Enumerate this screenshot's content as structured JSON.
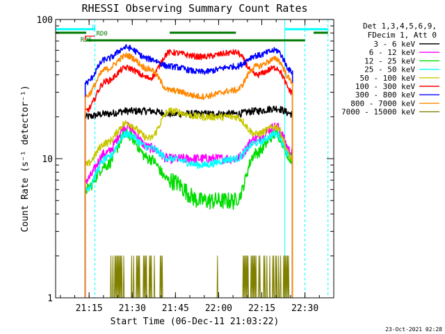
{
  "chart_data": {
    "type": "line",
    "title": "RHESSI Observing Summary Count Rates",
    "xlabel": "Start Time (06-Dec-11 21:03:22)",
    "ylabel": "Count Rate (s⁻¹ detector⁻¹)",
    "y_scale": "log",
    "ylim": [
      1,
      100
    ],
    "xlim": [
      "21:03:22",
      "22:40:00"
    ],
    "x_ticks": [
      "21:15",
      "21:30",
      "21:45",
      "22:00",
      "22:15",
      "22:30"
    ],
    "y_ticks": [
      "1",
      "10",
      "100"
    ],
    "footer": "23-Oct-2021 02:28",
    "legend": {
      "placement": "right",
      "header": [
        "Det 1,3,4,5,6,9,",
        "FDecim 1, Att 0"
      ]
    },
    "flags": [
      {
        "label": "N",
        "color": "#00ffff",
        "segments": [
          [
            "21:03:22",
            "21:17:00"
          ],
          [
            "22:23:00",
            "22:38:00"
          ]
        ]
      },
      {
        "label": "RD0",
        "color": "#007700",
        "segments": [
          [
            "21:03:22",
            "21:14:00"
          ],
          [
            "21:43:00",
            "22:06:00"
          ],
          [
            "22:33:00",
            "22:38:00"
          ]
        ]
      },
      {
        "label": "RD6",
        "color": "#007700",
        "segments": [
          [
            "21:14:00",
            "22:30:00"
          ]
        ]
      }
    ],
    "vertical_lines": [
      {
        "time": "21:17:00",
        "color": "#00ffff",
        "style": "dashed"
      },
      {
        "time": "22:30:00",
        "color": "#00ffff",
        "style": "dashed"
      },
      {
        "time": "22:38:00",
        "color": "#00ffff",
        "style": "dashed"
      },
      {
        "time": "21:03:22",
        "color": "#00ffff",
        "style": "solid"
      },
      {
        "time": "22:23:00",
        "color": "#00ffff",
        "style": "solid"
      }
    ],
    "data_window": [
      "21:13:40",
      "22:25:40"
    ],
    "attenuator_interval": [
      "21:43:00",
      "22:06:00"
    ],
    "key_times": [
      "21:13:40",
      "21:21:00",
      "21:28:00",
      "21:36:00",
      "21:43:00",
      "21:54:00",
      "22:06:00",
      "22:13:00",
      "22:20:00",
      "22:25:40"
    ],
    "series": [
      {
        "name": "3 - 6 keV",
        "color": "#000000",
        "values": [
          20,
          21,
          22,
          22,
          21,
          21,
          21,
          22,
          23,
          21
        ]
      },
      {
        "name": "6 - 12 keV",
        "color": "#ff00ff",
        "values": [
          7,
          11,
          17,
          12,
          10,
          10,
          10,
          14,
          17,
          11
        ]
      },
      {
        "name": "12 - 25 keV",
        "color": "#00dd00",
        "values": [
          6,
          9,
          15,
          10,
          7,
          5,
          5,
          11,
          15,
          10
        ]
      },
      {
        "name": "25 - 50 keV",
        "color": "#00ffff",
        "values": [
          6,
          10,
          15,
          12,
          10,
          9,
          10,
          13,
          15,
          10
        ]
      },
      {
        "name": "50 - 100 keV",
        "color": "#c8c800",
        "values": [
          9,
          13,
          18,
          14,
          22,
          20,
          20,
          15,
          17,
          10
        ]
      },
      {
        "name": "100 - 300 keV",
        "color": "#ff0000",
        "values": [
          22,
          36,
          45,
          38,
          58,
          54,
          58,
          40,
          45,
          30
        ]
      },
      {
        "name": "300 - 800 keV",
        "color": "#0000ff",
        "values": [
          35,
          52,
          63,
          52,
          46,
          42,
          46,
          55,
          60,
          42
        ]
      },
      {
        "name": "800 - 7000 keV",
        "color": "#ff8800",
        "values": [
          28,
          44,
          55,
          44,
          31,
          28,
          31,
          46,
          52,
          36
        ]
      },
      {
        "name": "7000 - 15000 keV",
        "color": "#808000",
        "values": [
          1,
          1,
          1.9,
          1.2,
          1,
          1,
          1,
          1.2,
          1.8,
          1
        ]
      }
    ]
  }
}
